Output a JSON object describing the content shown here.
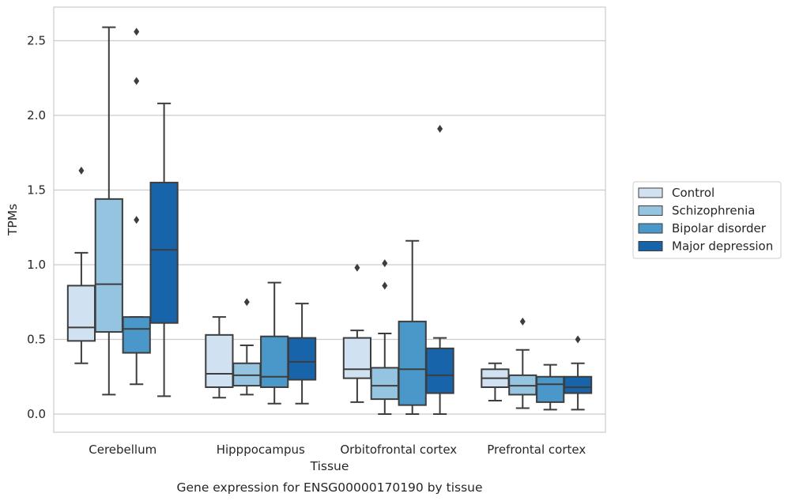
{
  "chart_data": {
    "type": "box",
    "xlabel": "Tissue",
    "ylabel": "TPMs",
    "caption": "Gene expression for ENSG00000170190 by tissue",
    "ylim": [
      -0.12,
      2.72
    ],
    "yticks": [
      "0.0",
      "0.5",
      "1.0",
      "1.5",
      "2.0",
      "2.5"
    ],
    "grid": "horizontal",
    "legend_placement": "right",
    "categories": [
      "Cerebellum",
      "Hipppocampus",
      "Orbitofrontal cortex",
      "Prefrontal cortex"
    ],
    "series": [
      {
        "name": "Control",
        "color": "#d0e1f2",
        "boxes": [
          {
            "whisker_low": 0.34,
            "q1": 0.49,
            "median": 0.58,
            "q3": 0.86,
            "whisker_high": 1.08,
            "outliers": [
              1.63
            ]
          },
          {
            "whisker_low": 0.11,
            "q1": 0.18,
            "median": 0.27,
            "q3": 0.53,
            "whisker_high": 0.65,
            "outliers": []
          },
          {
            "whisker_low": 0.08,
            "q1": 0.24,
            "median": 0.3,
            "q3": 0.51,
            "whisker_high": 0.56,
            "outliers": [
              0.98
            ]
          },
          {
            "whisker_low": 0.09,
            "q1": 0.18,
            "median": 0.24,
            "q3": 0.3,
            "whisker_high": 0.34,
            "outliers": []
          }
        ]
      },
      {
        "name": "Schizophrenia",
        "color": "#94c4df",
        "boxes": [
          {
            "whisker_low": 0.13,
            "q1": 0.55,
            "median": 0.87,
            "q3": 1.44,
            "whisker_high": 2.59,
            "outliers": []
          },
          {
            "whisker_low": 0.13,
            "q1": 0.19,
            "median": 0.26,
            "q3": 0.34,
            "whisker_high": 0.46,
            "outliers": [
              0.75
            ]
          },
          {
            "whisker_low": 0.0,
            "q1": 0.1,
            "median": 0.19,
            "q3": 0.31,
            "whisker_high": 0.54,
            "outliers": [
              0.86,
              1.01
            ]
          },
          {
            "whisker_low": 0.04,
            "q1": 0.13,
            "median": 0.19,
            "q3": 0.26,
            "whisker_high": 0.43,
            "outliers": [
              0.62
            ]
          }
        ]
      },
      {
        "name": "Bipolar disorder",
        "color": "#4a98c9",
        "boxes": [
          {
            "whisker_low": 0.2,
            "q1": 0.41,
            "median": 0.57,
            "q3": 0.65,
            "whisker_high": 0.65,
            "outliers": [
              1.3,
              2.23,
              2.56
            ]
          },
          {
            "whisker_low": 0.07,
            "q1": 0.18,
            "median": 0.25,
            "q3": 0.52,
            "whisker_high": 0.88,
            "outliers": []
          },
          {
            "whisker_low": 0.0,
            "q1": 0.06,
            "median": 0.3,
            "q3": 0.62,
            "whisker_high": 1.16,
            "outliers": []
          },
          {
            "whisker_low": 0.03,
            "q1": 0.08,
            "median": 0.2,
            "q3": 0.25,
            "whisker_high": 0.33,
            "outliers": []
          }
        ]
      },
      {
        "name": "Major depression",
        "color": "#1764ab",
        "boxes": [
          {
            "whisker_low": 0.12,
            "q1": 0.61,
            "median": 1.1,
            "q3": 1.55,
            "whisker_high": 2.08,
            "outliers": []
          },
          {
            "whisker_low": 0.07,
            "q1": 0.23,
            "median": 0.35,
            "q3": 0.51,
            "whisker_high": 0.74,
            "outliers": []
          },
          {
            "whisker_low": 0.0,
            "q1": 0.14,
            "median": 0.26,
            "q3": 0.44,
            "whisker_high": 0.51,
            "outliers": [
              1.91
            ]
          },
          {
            "whisker_low": 0.03,
            "q1": 0.14,
            "median": 0.18,
            "q3": 0.25,
            "whisker_high": 0.34,
            "outliers": [
              0.5
            ]
          }
        ]
      }
    ]
  }
}
